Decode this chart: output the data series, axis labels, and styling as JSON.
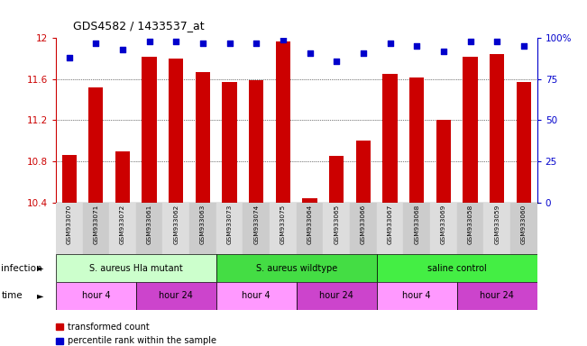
{
  "title": "GDS4582 / 1433537_at",
  "samples": [
    "GSM933070",
    "GSM933071",
    "GSM933072",
    "GSM933061",
    "GSM933062",
    "GSM933063",
    "GSM933073",
    "GSM933074",
    "GSM933075",
    "GSM933064",
    "GSM933065",
    "GSM933066",
    "GSM933067",
    "GSM933068",
    "GSM933069",
    "GSM933058",
    "GSM933059",
    "GSM933060"
  ],
  "bar_values": [
    10.86,
    11.52,
    10.9,
    11.82,
    11.8,
    11.67,
    11.57,
    11.59,
    11.97,
    10.44,
    10.85,
    11.0,
    11.65,
    11.62,
    11.2,
    11.82,
    11.84,
    11.57
  ],
  "percentile_values": [
    88,
    97,
    93,
    98,
    98,
    97,
    97,
    97,
    99,
    91,
    86,
    91,
    97,
    95,
    92,
    98,
    98,
    95
  ],
  "ylim_left": [
    10.4,
    12.0
  ],
  "ylim_right": [
    0,
    100
  ],
  "yticks_left": [
    10.4,
    10.8,
    11.2,
    11.6,
    12.0
  ],
  "yticks_right": [
    0,
    25,
    50,
    75,
    100
  ],
  "ytick_labels_left": [
    "10.4",
    "10.8",
    "11.2",
    "11.6",
    "12"
  ],
  "ytick_labels_right": [
    "0",
    "25",
    "50",
    "75",
    "100%"
  ],
  "grid_lines": [
    10.8,
    11.2,
    11.6
  ],
  "bar_color": "#cc0000",
  "dot_color": "#0000cc",
  "inf_group_colors": [
    "#ccffcc",
    "#44dd44",
    "#44ee44"
  ],
  "inf_groups": [
    {
      "label": "S. aureus Hla mutant",
      "start": 0,
      "end": 6
    },
    {
      "label": "S. aureus wildtype",
      "start": 6,
      "end": 12
    },
    {
      "label": "saline control",
      "start": 12,
      "end": 18
    }
  ],
  "time_groups": [
    {
      "label": "hour 4",
      "start": 0,
      "end": 3,
      "color": "#ff99ff"
    },
    {
      "label": "hour 24",
      "start": 3,
      "end": 6,
      "color": "#cc44cc"
    },
    {
      "label": "hour 4",
      "start": 6,
      "end": 9,
      "color": "#ff99ff"
    },
    {
      "label": "hour 24",
      "start": 9,
      "end": 12,
      "color": "#cc44cc"
    },
    {
      "label": "hour 4",
      "start": 12,
      "end": 15,
      "color": "#ff99ff"
    },
    {
      "label": "hour 24",
      "start": 15,
      "end": 18,
      "color": "#cc44cc"
    }
  ],
  "legend_items": [
    {
      "label": "transformed count",
      "color": "#cc0000"
    },
    {
      "label": "percentile rank within the sample",
      "color": "#0000cc"
    }
  ],
  "infection_label": "infection",
  "time_label": "time",
  "bg_color": "#ffffff",
  "tick_label_color_left": "#cc0000",
  "tick_label_color_right": "#0000cc",
  "sample_bg_even": "#dddddd",
  "sample_bg_odd": "#cccccc"
}
